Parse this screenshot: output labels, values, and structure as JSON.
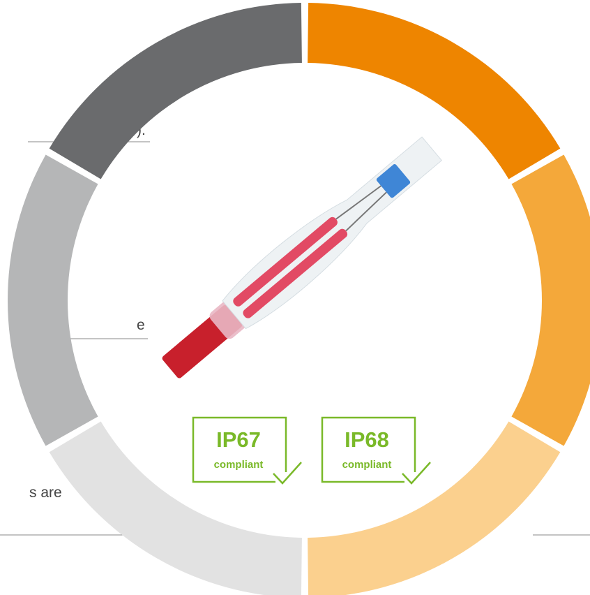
{
  "fragments": [
    ").",
    "e",
    "s are"
  ],
  "badges": [
    {
      "code": "IP67",
      "label": "compliant"
    },
    {
      "code": "IP68",
      "label": "compliant"
    }
  ]
}
